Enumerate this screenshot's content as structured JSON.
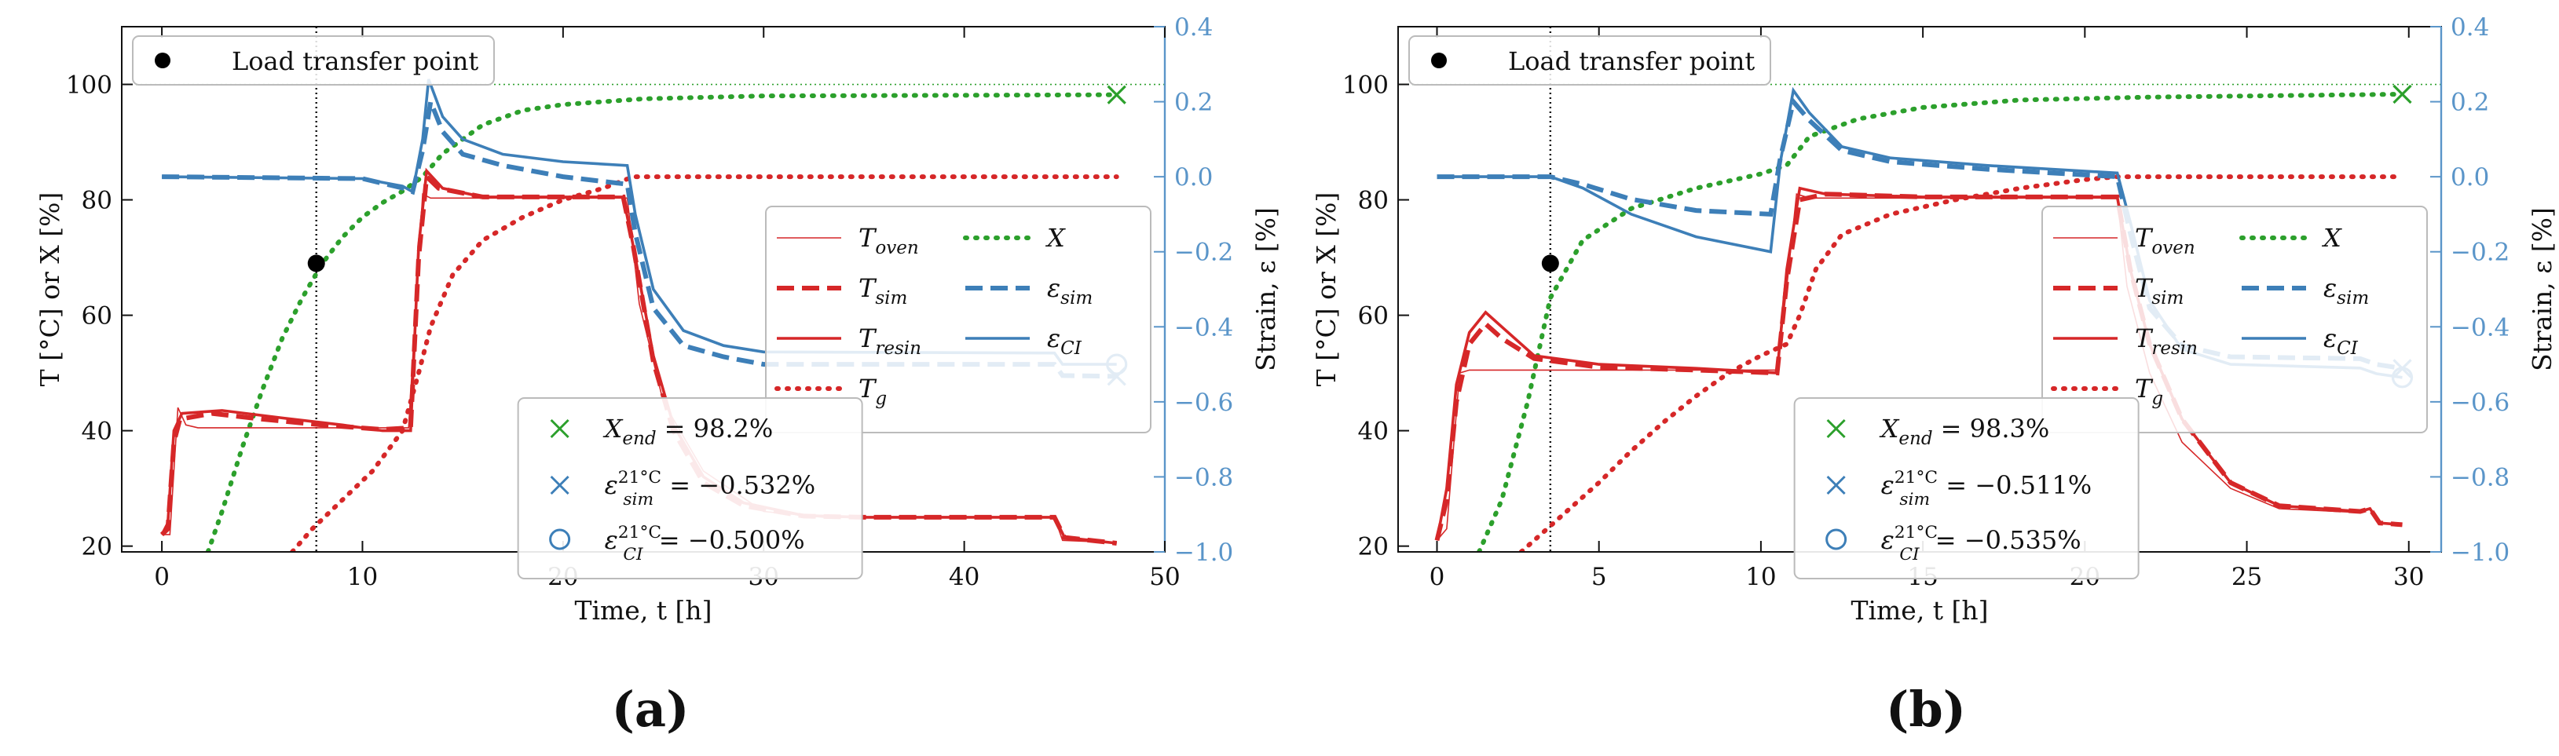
{
  "colors": {
    "red": "#d62728",
    "green": "#2ca02c",
    "blue": "#3d7fb8",
    "blue_axis": "#5a95c9"
  },
  "shared": {
    "xlabel": "Time, t [h]",
    "ylabel_left": "T [°C] or X [%]",
    "ylabel_right": "Strain, ε [%]",
    "legend_load_transfer": "Load transfer point",
    "legend_series": [
      {
        "key": "T_oven",
        "base": "T",
        "sub": "oven",
        "style": "thin-red"
      },
      {
        "key": "T_sim",
        "base": "T",
        "sub": "sim",
        "style": "dashed-red"
      },
      {
        "key": "T_resin",
        "base": "T",
        "sub": "resin",
        "style": "solid-red"
      },
      {
        "key": "T_g",
        "base": "T",
        "sub": "g",
        "style": "dotted-red"
      },
      {
        "key": "X",
        "base": "X",
        "sub": "",
        "style": "dotted-green"
      },
      {
        "key": "eps_sim",
        "base": "ε",
        "sub": "sim",
        "style": "dashed-blue"
      },
      {
        "key": "eps_CI",
        "base": "ε",
        "sub": "CI",
        "style": "solid-blue"
      }
    ],
    "left_ticks": [
      20,
      40,
      60,
      80,
      100
    ],
    "right_ticks": [
      "0.4",
      "0.2",
      "0.0",
      "−0.2",
      "−0.4",
      "−0.6",
      "−0.8",
      "−1.0"
    ]
  },
  "chart_data": [
    {
      "panel_label": "(a)",
      "type": "line",
      "xlim": [
        -2,
        50
      ],
      "ylim_left": [
        19,
        110
      ],
      "ylim_right": [
        -1.0,
        0.4
      ],
      "x_ticks": [
        0,
        10,
        20,
        30,
        40,
        50
      ],
      "load_transfer_point": {
        "t": 7.7,
        "value": 69
      },
      "end_markers": {
        "X": {
          "t": 47.6,
          "value": 98.2
        },
        "eps_sim": {
          "t": 47.6,
          "value": -0.532
        },
        "eps_CI": {
          "t": 47.6,
          "value": -0.5
        }
      },
      "annotations": {
        "x_end": {
          "label": "X",
          "sub": "end",
          "value": "= 98.2%"
        },
        "eps_sim": {
          "label": "ε",
          "sub": "sim",
          "sup": "21°C",
          "value": "= −0.532%"
        },
        "eps_ci": {
          "label": "ε",
          "sub": "CI",
          "sup": "21°C",
          "value": "= −0.500%"
        }
      },
      "series": {
        "T_oven": [
          [
            0,
            22
          ],
          [
            0.4,
            22
          ],
          [
            0.8,
            44
          ],
          [
            1.2,
            41
          ],
          [
            1.8,
            40.5
          ],
          [
            12.3,
            40.5
          ],
          [
            12.6,
            58
          ],
          [
            13.0,
            81
          ],
          [
            13.4,
            80.3
          ],
          [
            23.2,
            80.3
          ],
          [
            23.8,
            62
          ],
          [
            25,
            45
          ],
          [
            27,
            33
          ],
          [
            30,
            26
          ],
          [
            33,
            25
          ],
          [
            44.5,
            25
          ],
          [
            44.9,
            21
          ],
          [
            47.6,
            20.6
          ]
        ],
        "T_sim": [
          [
            0,
            22
          ],
          [
            0.3,
            23
          ],
          [
            0.6,
            38
          ],
          [
            0.9,
            42
          ],
          [
            2.5,
            43
          ],
          [
            5,
            42
          ],
          [
            8,
            41
          ],
          [
            11,
            40.2
          ],
          [
            12.4,
            40.5
          ],
          [
            12.8,
            70
          ],
          [
            13.2,
            84
          ],
          [
            13.8,
            82
          ],
          [
            16,
            80.5
          ],
          [
            23,
            80.5
          ],
          [
            23.5,
            72
          ],
          [
            24.5,
            52
          ],
          [
            25.5,
            40
          ],
          [
            27,
            31
          ],
          [
            29,
            27
          ],
          [
            32,
            25.2
          ],
          [
            35,
            25
          ],
          [
            44.5,
            25
          ],
          [
            45,
            21.5
          ],
          [
            47.6,
            20.5
          ]
        ],
        "T_resin": [
          [
            0,
            22
          ],
          [
            0.3,
            24
          ],
          [
            0.6,
            40
          ],
          [
            1.0,
            43
          ],
          [
            3,
            43.5
          ],
          [
            6,
            42.2
          ],
          [
            9,
            41
          ],
          [
            11,
            40
          ],
          [
            12.4,
            40
          ],
          [
            12.8,
            72
          ],
          [
            13.2,
            85
          ],
          [
            14,
            82
          ],
          [
            16,
            80.5
          ],
          [
            23,
            80.5
          ],
          [
            23.5,
            72
          ],
          [
            24.5,
            53
          ],
          [
            25.5,
            41
          ],
          [
            27,
            32
          ],
          [
            29,
            27.5
          ],
          [
            32,
            25.3
          ],
          [
            35,
            25
          ],
          [
            44.5,
            25
          ],
          [
            45,
            21.5
          ],
          [
            47.6,
            20.5
          ]
        ],
        "T_g": [
          [
            6.5,
            19
          ],
          [
            7.5,
            23
          ],
          [
            9,
            28
          ],
          [
            10.5,
            33
          ],
          [
            12,
            40
          ],
          [
            12.8,
            50
          ],
          [
            13.4,
            58
          ],
          [
            14.5,
            67
          ],
          [
            16,
            73
          ],
          [
            18,
            77
          ],
          [
            20,
            80
          ],
          [
            22,
            82
          ],
          [
            23.5,
            84
          ],
          [
            47.6,
            84
          ]
        ],
        "X": [
          [
            2.3,
            19
          ],
          [
            3,
            26
          ],
          [
            4,
            37
          ],
          [
            5,
            47
          ],
          [
            6,
            56
          ],
          [
            7,
            63
          ],
          [
            8,
            69
          ],
          [
            9,
            73.5
          ],
          [
            10,
            77
          ],
          [
            11,
            79.5
          ],
          [
            12,
            81.5
          ],
          [
            13,
            84
          ],
          [
            14,
            88
          ],
          [
            16,
            93
          ],
          [
            18,
            95.5
          ],
          [
            20,
            96.5
          ],
          [
            24,
            97.5
          ],
          [
            30,
            98
          ],
          [
            47.6,
            98.2
          ]
        ],
        "eps_sim": [
          [
            0,
            0
          ],
          [
            10,
            -0.005
          ],
          [
            12,
            -0.03
          ],
          [
            12.5,
            -0.04
          ],
          [
            13,
            0.07
          ],
          [
            13.4,
            0.2
          ],
          [
            14,
            0.12
          ],
          [
            15,
            0.06
          ],
          [
            17,
            0.03
          ],
          [
            20,
            0.0
          ],
          [
            23.2,
            -0.02
          ],
          [
            23.6,
            -0.15
          ],
          [
            24.5,
            -0.35
          ],
          [
            26,
            -0.45
          ],
          [
            28,
            -0.48
          ],
          [
            30,
            -0.5
          ],
          [
            44.5,
            -0.5
          ],
          [
            44.9,
            -0.53
          ],
          [
            47.6,
            -0.532
          ]
        ],
        "eps_CI": [
          [
            0,
            0
          ],
          [
            10,
            -0.005
          ],
          [
            12,
            -0.025
          ],
          [
            12.5,
            -0.04
          ],
          [
            13,
            0.1
          ],
          [
            13.3,
            0.26
          ],
          [
            14,
            0.16
          ],
          [
            15,
            0.1
          ],
          [
            17,
            0.06
          ],
          [
            20,
            0.04
          ],
          [
            23.2,
            0.03
          ],
          [
            23.6,
            -0.1
          ],
          [
            24.5,
            -0.3
          ],
          [
            26,
            -0.41
          ],
          [
            28,
            -0.45
          ],
          [
            30,
            -0.467
          ],
          [
            44.5,
            -0.47
          ],
          [
            44.9,
            -0.5
          ],
          [
            47.6,
            -0.5
          ]
        ]
      }
    },
    {
      "panel_label": "(b)",
      "type": "line",
      "xlim": [
        -1.2,
        31
      ],
      "ylim_left": [
        19,
        110
      ],
      "ylim_right": [
        -1.0,
        0.4
      ],
      "x_ticks": [
        0,
        5,
        10,
        15,
        20,
        25,
        30
      ],
      "load_transfer_point": {
        "t": 3.5,
        "value": 69
      },
      "end_markers": {
        "X": {
          "t": 29.8,
          "value": 98.3
        },
        "eps_sim": {
          "t": 29.8,
          "value": -0.511
        },
        "eps_CI": {
          "t": 29.8,
          "value": -0.535
        }
      },
      "annotations": {
        "x_end": {
          "label": "X",
          "sub": "end",
          "value": "= 98.3%"
        },
        "eps_sim": {
          "label": "ε",
          "sub": "sim",
          "sup": "21°C",
          "value": "= −0.511%"
        },
        "eps_ci": {
          "label": "ε",
          "sub": "CI",
          "sup": "21°C",
          "value": "= −0.535%"
        }
      },
      "series": {
        "T_oven": [
          [
            0,
            21
          ],
          [
            0.3,
            23
          ],
          [
            0.7,
            50
          ],
          [
            1.0,
            50.5
          ],
          [
            10.5,
            50.5
          ],
          [
            10.8,
            65
          ],
          [
            11.1,
            81
          ],
          [
            11.5,
            80.3
          ],
          [
            21,
            80.3
          ],
          [
            21.3,
            65
          ],
          [
            22,
            50
          ],
          [
            23,
            38
          ],
          [
            24.5,
            30
          ],
          [
            26,
            26.5
          ],
          [
            28.5,
            25.8
          ],
          [
            28.8,
            26.5
          ],
          [
            29.1,
            24
          ],
          [
            29.8,
            23.7
          ]
        ],
        "T_sim": [
          [
            0,
            21
          ],
          [
            0.3,
            28
          ],
          [
            0.6,
            45
          ],
          [
            1.0,
            55
          ],
          [
            1.5,
            58.5
          ],
          [
            2,
            56
          ],
          [
            3,
            52.5
          ],
          [
            5,
            51
          ],
          [
            8,
            50.5
          ],
          [
            10.5,
            50
          ],
          [
            10.8,
            66
          ],
          [
            11.2,
            80
          ],
          [
            12,
            81
          ],
          [
            15,
            80.5
          ],
          [
            21,
            80.5
          ],
          [
            21.4,
            68
          ],
          [
            22,
            55
          ],
          [
            23,
            42
          ],
          [
            24.5,
            31
          ],
          [
            26,
            27
          ],
          [
            28.5,
            26
          ],
          [
            28.8,
            26.5
          ],
          [
            29.1,
            24
          ],
          [
            29.8,
            23.7
          ]
        ],
        "T_resin": [
          [
            0,
            21
          ],
          [
            0.3,
            30
          ],
          [
            0.6,
            48
          ],
          [
            1.0,
            57
          ],
          [
            1.5,
            60.5
          ],
          [
            2,
            58
          ],
          [
            3,
            53
          ],
          [
            5,
            51.5
          ],
          [
            8,
            50.8
          ],
          [
            10.5,
            50
          ],
          [
            10.8,
            68
          ],
          [
            11.2,
            82
          ],
          [
            12,
            81
          ],
          [
            15,
            80.5
          ],
          [
            21,
            80.5
          ],
          [
            21.4,
            68
          ],
          [
            22,
            55
          ],
          [
            23,
            42
          ],
          [
            24.5,
            31
          ],
          [
            26,
            27
          ],
          [
            28.5,
            26
          ],
          [
            28.8,
            26.5
          ],
          [
            29.1,
            24
          ],
          [
            29.8,
            23.7
          ]
        ],
        "T_g": [
          [
            2.6,
            19
          ],
          [
            3,
            21
          ],
          [
            4,
            26
          ],
          [
            5,
            31
          ],
          [
            6,
            36.5
          ],
          [
            7,
            41.5
          ],
          [
            8,
            46
          ],
          [
            9,
            50
          ],
          [
            10,
            53
          ],
          [
            10.8,
            55
          ],
          [
            11.2,
            60
          ],
          [
            11.7,
            68
          ],
          [
            12.5,
            74
          ],
          [
            14,
            77.5
          ],
          [
            16,
            80
          ],
          [
            18,
            82
          ],
          [
            20,
            83.5
          ],
          [
            21,
            84
          ],
          [
            29.8,
            84
          ]
        ],
        "X": [
          [
            1.3,
            19
          ],
          [
            2,
            28
          ],
          [
            2.8,
            45
          ],
          [
            3.5,
            63
          ],
          [
            4.5,
            73
          ],
          [
            6,
            78.5
          ],
          [
            8,
            82
          ],
          [
            10,
            84.5
          ],
          [
            10.8,
            86
          ],
          [
            11.5,
            91
          ],
          [
            13,
            94
          ],
          [
            15,
            96
          ],
          [
            18,
            97.3
          ],
          [
            22,
            97.8
          ],
          [
            29.8,
            98.3
          ]
        ],
        "eps_sim": [
          [
            0,
            0
          ],
          [
            3.5,
            0
          ],
          [
            4.5,
            -0.02
          ],
          [
            6,
            -0.06
          ],
          [
            8,
            -0.09
          ],
          [
            10.3,
            -0.1
          ],
          [
            10.6,
            0.05
          ],
          [
            11.0,
            0.2
          ],
          [
            11.5,
            0.15
          ],
          [
            12.5,
            0.07
          ],
          [
            14,
            0.04
          ],
          [
            17,
            0.02
          ],
          [
            21,
            0.0
          ],
          [
            21.4,
            -0.15
          ],
          [
            22,
            -0.35
          ],
          [
            23,
            -0.45
          ],
          [
            24.5,
            -0.48
          ],
          [
            28.5,
            -0.485
          ],
          [
            29,
            -0.5
          ],
          [
            29.8,
            -0.511
          ]
        ],
        "eps_CI": [
          [
            0,
            0
          ],
          [
            3.5,
            0
          ],
          [
            4.5,
            -0.03
          ],
          [
            6,
            -0.1
          ],
          [
            8,
            -0.16
          ],
          [
            10.3,
            -0.2
          ],
          [
            10.6,
            0.04
          ],
          [
            11.0,
            0.23
          ],
          [
            11.5,
            0.17
          ],
          [
            12.5,
            0.08
          ],
          [
            14,
            0.05
          ],
          [
            17,
            0.03
          ],
          [
            21,
            0.01
          ],
          [
            21.4,
            -0.12
          ],
          [
            22,
            -0.33
          ],
          [
            23,
            -0.46
          ],
          [
            24.5,
            -0.5
          ],
          [
            28.5,
            -0.51
          ],
          [
            29,
            -0.525
          ],
          [
            29.8,
            -0.535
          ]
        ]
      }
    }
  ]
}
